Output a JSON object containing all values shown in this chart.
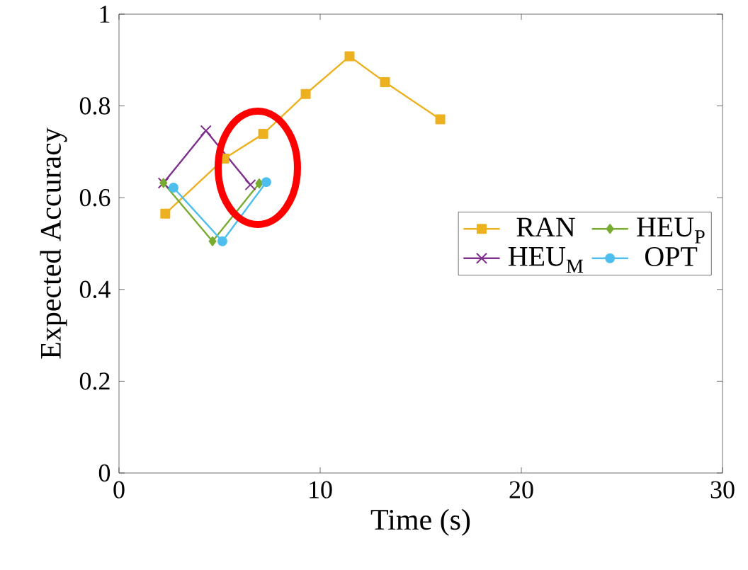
{
  "chart_data": {
    "type": "line",
    "xlabel": "Time (s)",
    "ylabel": "Expected Accuracy",
    "xlim": [
      0,
      30
    ],
    "xticks": [
      0,
      10,
      20,
      30
    ],
    "ylim": [
      0,
      1
    ],
    "yticks": [
      0,
      0.2,
      0.4,
      0.6,
      0.8,
      1
    ],
    "legend": "right",
    "line_style": "solid",
    "series": [
      {
        "name": "RAN",
        "color": "#edb120",
        "marker": "square",
        "x": [
          2.3,
          5.23,
          7.17,
          9.28,
          11.46,
          13.22,
          15.97
        ],
        "values": [
          0.565,
          0.685,
          0.739,
          0.826,
          0.908,
          0.852,
          0.771
        ]
      },
      {
        "name": "HEU$_{M}$",
        "color": "#7e2f8e",
        "marker": "cross",
        "x": [
          2.21,
          4.32,
          6.53
        ],
        "values": [
          0.632,
          0.746,
          0.628
        ]
      },
      {
        "name": "HEU$_{P}$",
        "color": "#77ac30",
        "marker": "diamond",
        "x": [
          2.21,
          4.65,
          6.97
        ],
        "values": [
          0.632,
          0.505,
          0.631
        ]
      },
      {
        "name": "OPT",
        "color": "#4dbeee",
        "marker": "circle",
        "x": [
          2.71,
          5.14,
          7.32
        ],
        "values": [
          0.622,
          0.505,
          0.634
        ]
      }
    ]
  }
}
